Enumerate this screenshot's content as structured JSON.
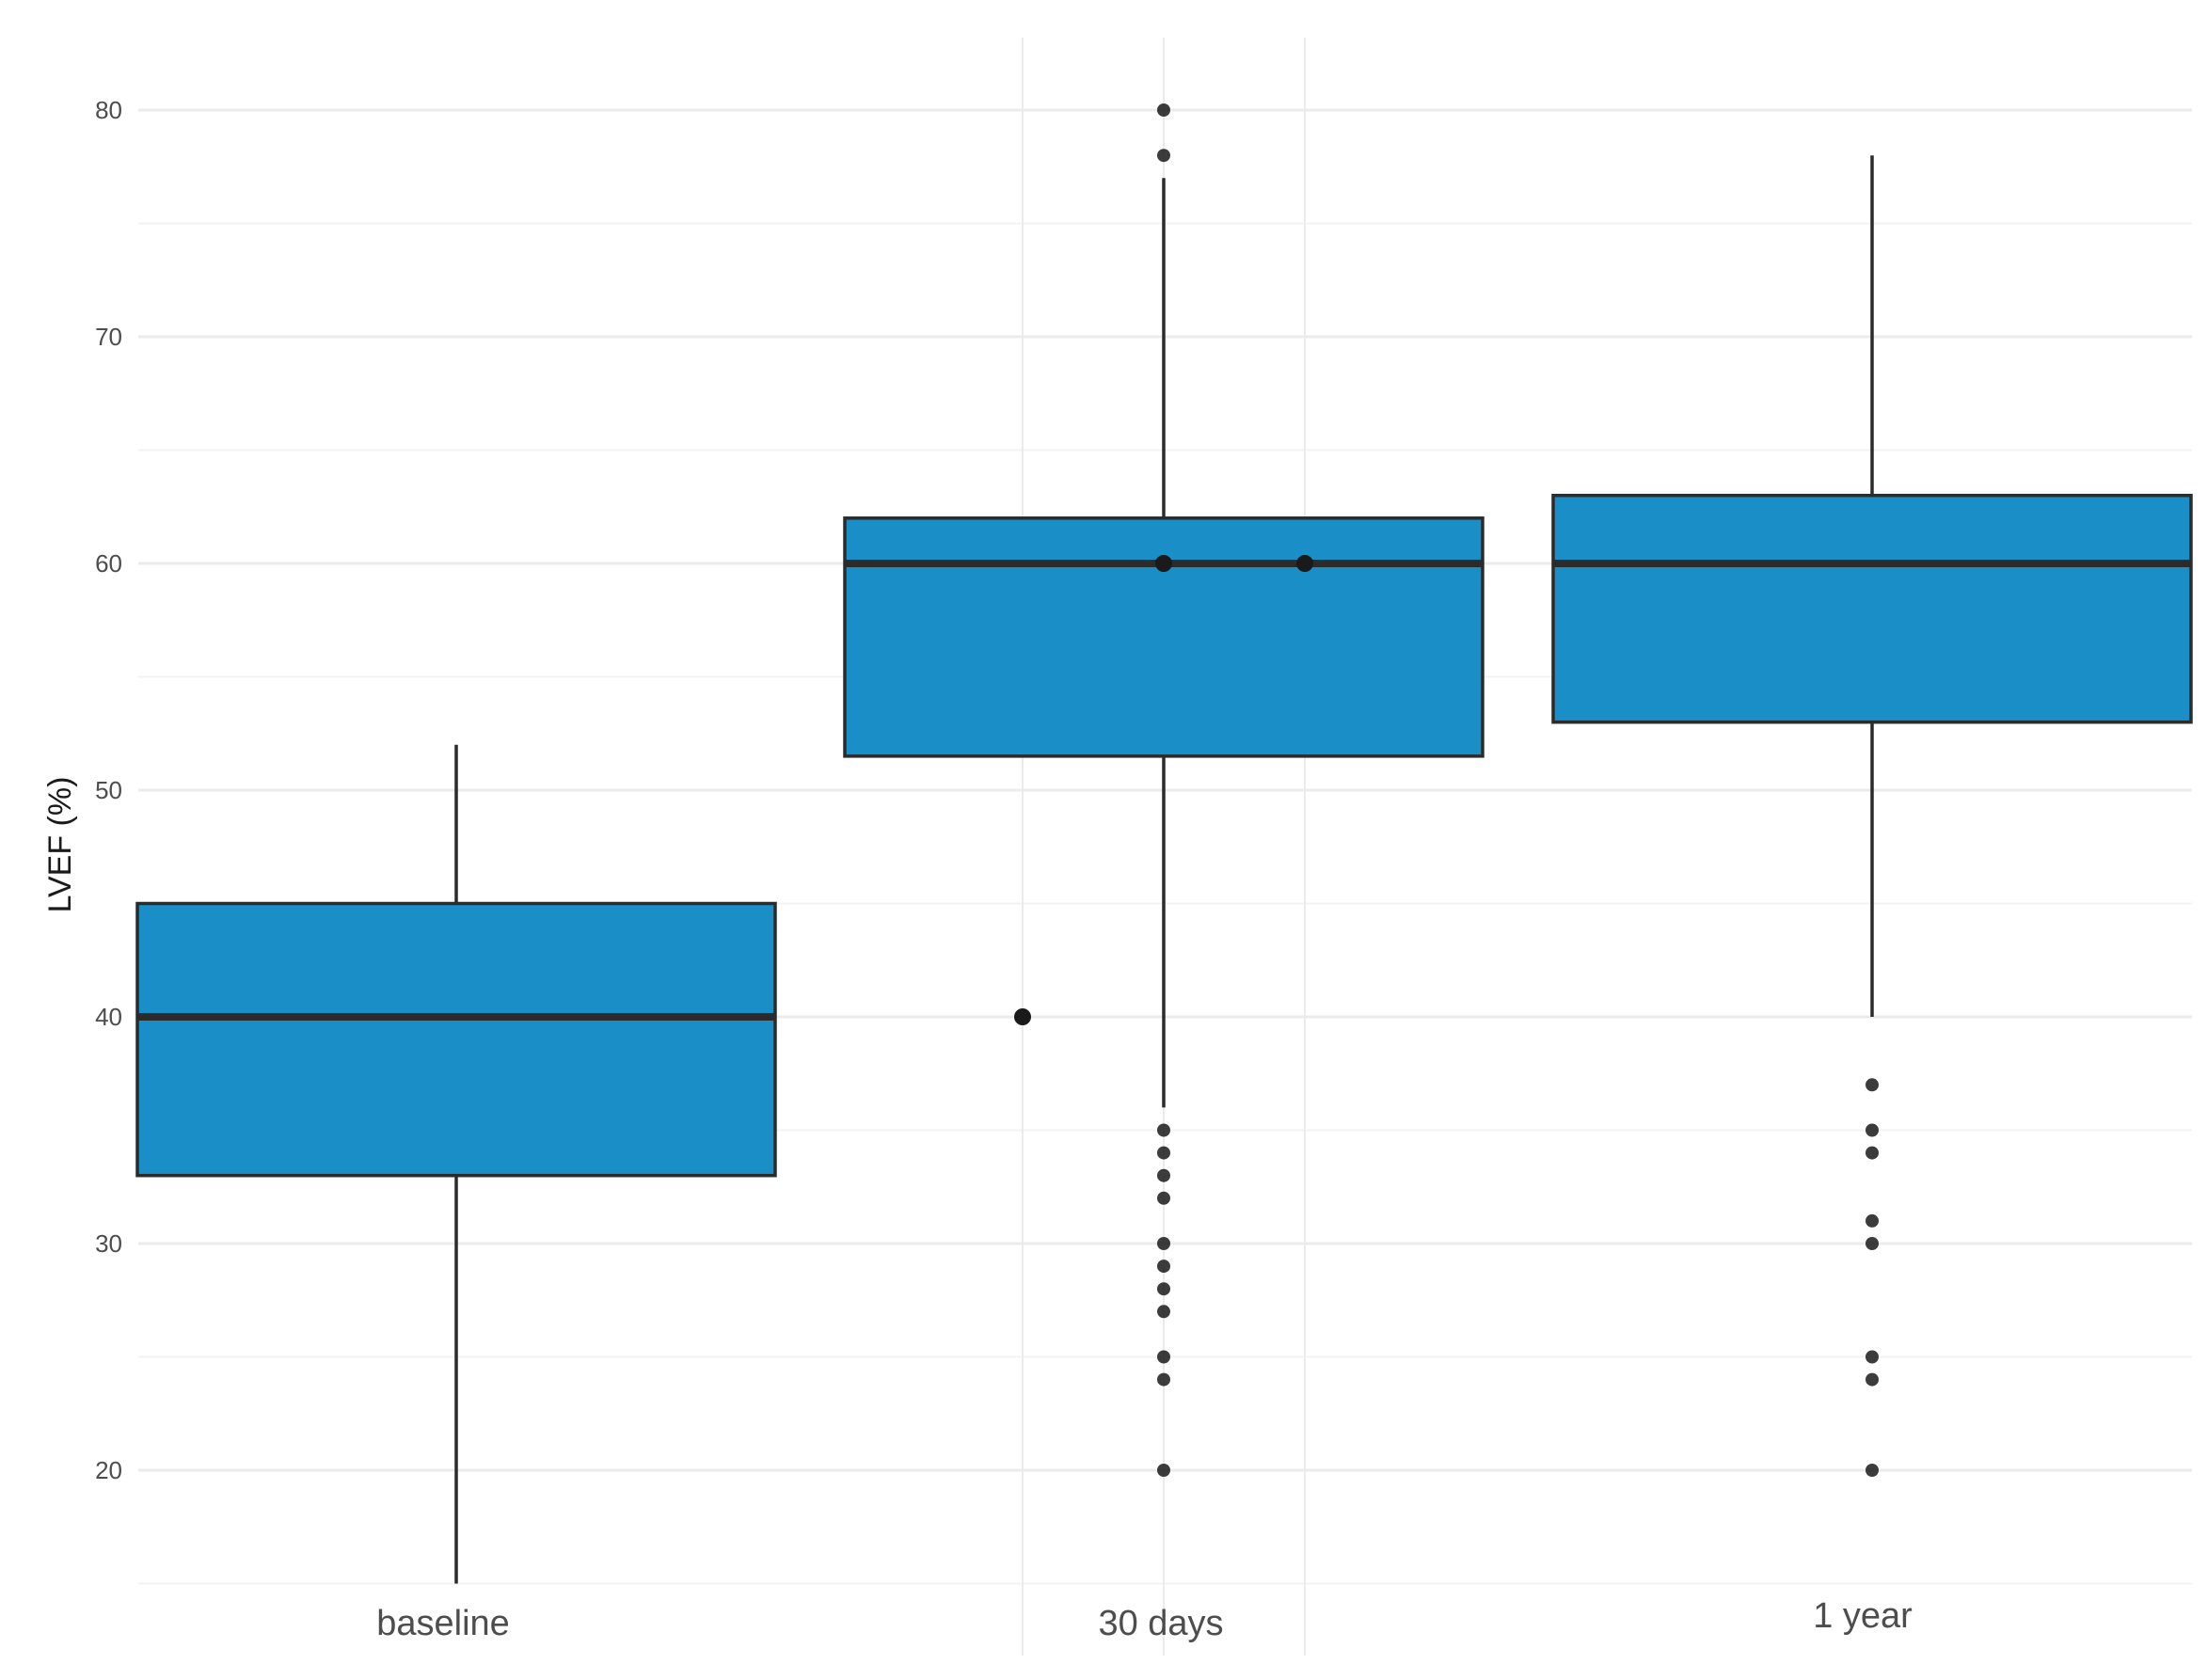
{
  "chart_data": {
    "type": "box",
    "title": "",
    "xlabel": "",
    "ylabel": "LVEF (%)",
    "ylim": [
      15,
      83
    ],
    "yticks": [
      20,
      30,
      40,
      50,
      60,
      70,
      80
    ],
    "grid": true,
    "legend": "none",
    "fill_color": "#1a8fc7",
    "line_color": "#2b2b2b",
    "categories": [
      "baseline",
      "30 days",
      "1 year"
    ],
    "boxes": [
      {
        "category": "baseline",
        "lower_whisker": 15,
        "q1": 33,
        "median": 40,
        "q3": 45,
        "upper_whisker": 52,
        "outliers": []
      },
      {
        "category": "30 days",
        "lower_whisker": 36,
        "q1": 51.5,
        "median": 60,
        "q3": 62,
        "upper_whisker": 77,
        "outliers": [
          80,
          78,
          35,
          34,
          33,
          32,
          30,
          29,
          28,
          27,
          25,
          24,
          20
        ]
      },
      {
        "category": "1 year",
        "lower_whisker": 40,
        "q1": 53,
        "median": 60,
        "q3": 63,
        "upper_whisker": 78,
        "outliers": [
          37,
          35,
          34,
          31,
          30,
          25,
          24,
          20
        ]
      }
    ],
    "extra_points": [
      {
        "x": "between baseline and 30 days",
        "y": 40
      },
      {
        "x": "30 days",
        "y": 60
      },
      {
        "x": "between 30 days and 1 year",
        "y": 60
      }
    ]
  }
}
